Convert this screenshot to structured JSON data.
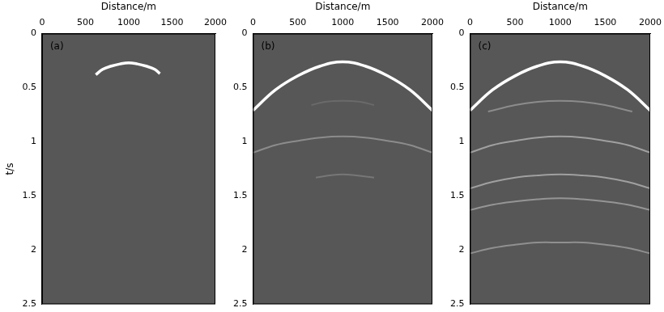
{
  "chart_data": [
    {
      "type": "line",
      "annotation": "(a)",
      "x_label": "Distance/m",
      "y_label": "t/s",
      "xlim": [
        0,
        2000
      ],
      "xticks": [
        0,
        500,
        1000,
        1500,
        2000
      ],
      "ylim": [
        0,
        2.5
      ],
      "yticks": [
        0,
        0.5,
        1,
        1.5,
        2,
        2.5
      ],
      "series": [
        {
          "color": "#ffffff",
          "x": [
            620,
            700,
            800,
            900,
            1000,
            1100,
            1200,
            1300,
            1360
          ],
          "values": [
            0.38,
            0.33,
            0.3,
            0.28,
            0.27,
            0.28,
            0.3,
            0.33,
            0.37
          ]
        }
      ]
    },
    {
      "type": "line",
      "annotation": "(b)",
      "x_label": "Distance/m",
      "xlim": [
        0,
        2000
      ],
      "xticks": [
        0,
        500,
        1000,
        1500,
        2000
      ],
      "ylim": [
        0,
        2.5
      ],
      "yticks": [
        0,
        0.5,
        1,
        1.5,
        2,
        2.5
      ],
      "series": [
        {
          "color": "#ffffff",
          "x": [
            0,
            250,
            500,
            750,
            1000,
            1250,
            1500,
            1750,
            2000
          ],
          "values": [
            0.71,
            0.52,
            0.39,
            0.3,
            0.26,
            0.3,
            0.39,
            0.52,
            0.71
          ]
        },
        {
          "color": "#6a6a6a",
          "x": [
            650,
            800,
            1000,
            1200,
            1350
          ],
          "values": [
            0.66,
            0.63,
            0.62,
            0.63,
            0.66
          ]
        },
        {
          "color": "#8c8c8c",
          "x": [
            0,
            250,
            500,
            750,
            1000,
            1250,
            1500,
            1750,
            2000
          ],
          "values": [
            1.1,
            1.03,
            0.99,
            0.96,
            0.95,
            0.96,
            0.99,
            1.03,
            1.1
          ]
        },
        {
          "color": "#777777",
          "x": [
            700,
            850,
            1000,
            1150,
            1350
          ],
          "values": [
            1.33,
            1.31,
            1.3,
            1.31,
            1.33
          ]
        }
      ]
    },
    {
      "type": "line",
      "annotation": "(c)",
      "x_label": "Distance/m",
      "xlim": [
        0,
        2000
      ],
      "xticks": [
        0,
        500,
        1000,
        1500,
        2000
      ],
      "ylim": [
        0,
        2.5
      ],
      "yticks": [
        0,
        0.5,
        1,
        1.5,
        2,
        2.5
      ],
      "series": [
        {
          "color": "#ffffff",
          "x": [
            0,
            250,
            500,
            750,
            1000,
            1250,
            1500,
            1750,
            2000
          ],
          "values": [
            0.71,
            0.52,
            0.39,
            0.3,
            0.26,
            0.3,
            0.39,
            0.52,
            0.71
          ]
        },
        {
          "color": "#8c8c8c",
          "x": [
            200,
            500,
            750,
            1000,
            1250,
            1500,
            1800
          ],
          "values": [
            0.72,
            0.66,
            0.63,
            0.62,
            0.63,
            0.66,
            0.72
          ]
        },
        {
          "color": "#a0a0a0",
          "x": [
            0,
            250,
            500,
            750,
            1000,
            1250,
            1500,
            1750,
            2000
          ],
          "values": [
            1.1,
            1.03,
            0.99,
            0.96,
            0.95,
            0.96,
            0.99,
            1.03,
            1.1
          ]
        },
        {
          "color": "#a0a0a0",
          "x": [
            0,
            250,
            500,
            750,
            1000,
            1250,
            1500,
            1750,
            2000
          ],
          "values": [
            1.43,
            1.37,
            1.33,
            1.31,
            1.3,
            1.31,
            1.33,
            1.37,
            1.43
          ]
        },
        {
          "color": "#959595",
          "x": [
            0,
            250,
            500,
            750,
            1000,
            1250,
            1500,
            1750,
            2000
          ],
          "values": [
            1.63,
            1.58,
            1.55,
            1.53,
            1.52,
            1.53,
            1.55,
            1.58,
            1.63
          ]
        },
        {
          "color": "#909090",
          "x": [
            0,
            250,
            500,
            750,
            1000,
            1250,
            1500,
            1750,
            2000
          ],
          "values": [
            2.03,
            1.98,
            1.95,
            1.93,
            1.93,
            1.93,
            1.95,
            1.98,
            2.03
          ]
        }
      ]
    }
  ]
}
